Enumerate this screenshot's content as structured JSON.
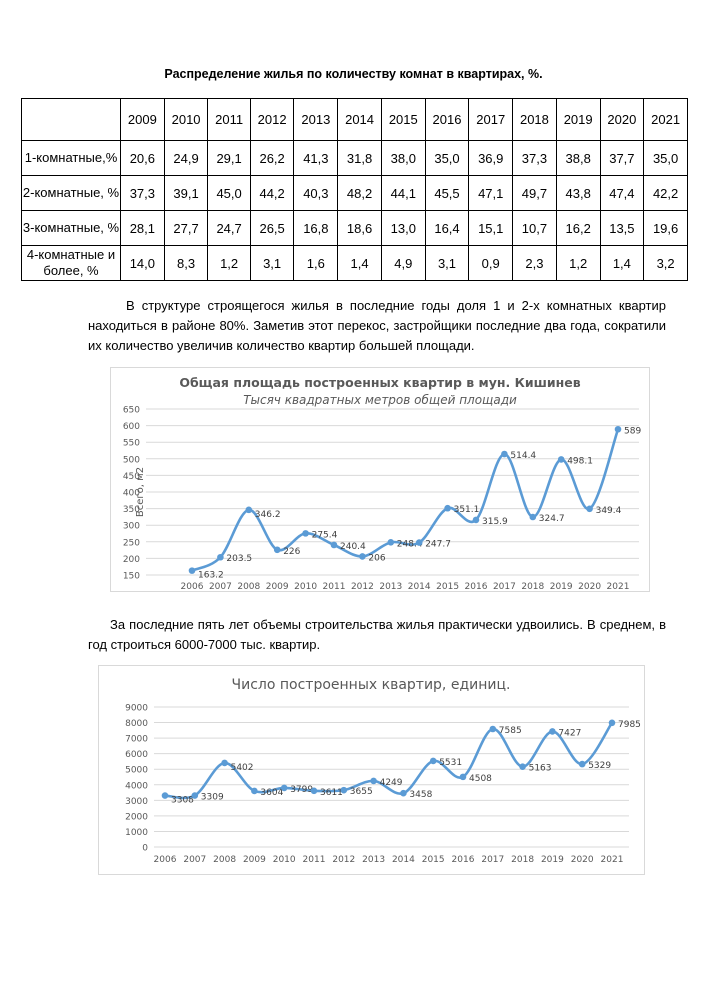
{
  "title": "Распределение жилья по количеству комнат в квартирах, %.",
  "table": {
    "years": [
      "2009",
      "2010",
      "2011",
      "2012",
      "2013",
      "2014",
      "2015",
      "2016",
      "2017",
      "2018",
      "2019",
      "2020",
      "2021"
    ],
    "rows": [
      {
        "label": "1-комнатные,%",
        "values": [
          "20,6",
          "24,9",
          "29,1",
          "26,2",
          "41,3",
          "31,8",
          "38,0",
          "35,0",
          "36,9",
          "37,3",
          "38,8",
          "37,7",
          "35,0"
        ]
      },
      {
        "label": "2-комнатные, %",
        "values": [
          "37,3",
          "39,1",
          "45,0",
          "44,2",
          "40,3",
          "48,2",
          "44,1",
          "45,5",
          "47,1",
          "49,7",
          "43,8",
          "47,4",
          "42,2"
        ]
      },
      {
        "label": "3-комнатные, %",
        "values": [
          "28,1",
          "27,7",
          "24,7",
          "26,5",
          "16,8",
          "18,6",
          "13,0",
          "16,4",
          "15,1",
          "10,7",
          "16,2",
          "13,5",
          "19,6"
        ]
      },
      {
        "label": "4-комнатные и более, %",
        "values": [
          "14,0",
          "8,3",
          "1,2",
          "3,1",
          "1,6",
          "1,4",
          "4,9",
          "3,1",
          "0,9",
          "2,3",
          "1,2",
          "1,4",
          "3,2"
        ]
      }
    ]
  },
  "paragraph1": "В структуре строящегося жилья в последние годы доля 1 и 2-х комнатных квартир находиться в районе 80%. Заметив этот перекос, застройщики последние два года, сократили их количество увеличив количество квартир большей площади.",
  "paragraph2": "За последние пять лет объемы строительства жилья практически удвоились. В среднем, в год строиться 6000-7000 тыс. квартир.",
  "chart_data": [
    {
      "type": "line",
      "title": "Общая площадь построенных квартир в мун. Кишинев",
      "subtitle": "Тысяч квадратных метров общей площади",
      "ylabel": "Всего, м2",
      "xlabel": "",
      "categories": [
        "2006",
        "2007",
        "2008",
        "2009",
        "2010",
        "2011",
        "2012",
        "2013",
        "2014",
        "2015",
        "2016",
        "2017",
        "2018",
        "2019",
        "2020",
        "2021"
      ],
      "values": [
        163.2,
        203.5,
        346.2,
        226,
        275.4,
        240.4,
        206,
        248.4,
        247.7,
        351.1,
        315.9,
        514.4,
        324.7,
        498.1,
        349.4,
        589
      ],
      "labels": [
        "163.2",
        "203.5",
        "346.2",
        "226",
        "275.4",
        "240.4",
        "206",
        "248.4",
        "247.7",
        "351.1",
        "315.9",
        "514.4",
        "324.7",
        "498.1",
        "349.4",
        "589"
      ],
      "ylim": [
        150,
        650
      ],
      "yticks": [
        150,
        200,
        250,
        300,
        350,
        400,
        450,
        500,
        550,
        600,
        650
      ],
      "grid": true,
      "smooth": true,
      "color": "#5b9bd5"
    },
    {
      "type": "line",
      "title": "Число построенных квартир, единиц.",
      "xlabel": "",
      "ylabel": "",
      "categories": [
        "2006",
        "2007",
        "2008",
        "2009",
        "2010",
        "2011",
        "2012",
        "2013",
        "2014",
        "2015",
        "2016",
        "2017",
        "2018",
        "2019",
        "2020",
        "2021"
      ],
      "values": [
        3308,
        3309,
        5402,
        3604,
        3799,
        3611,
        3655,
        4249,
        3458,
        5531,
        4508,
        7585,
        5163,
        7427,
        5329,
        7985
      ],
      "labels": [
        "3308",
        "3309",
        "5402",
        "3604",
        "3799",
        "3611",
        "3655",
        "4249",
        "3458",
        "5531",
        "4508",
        "7585",
        "5163",
        "7427",
        "5329",
        "7985"
      ],
      "ylim": [
        0,
        9000
      ],
      "yticks": [
        0,
        1000,
        2000,
        3000,
        4000,
        5000,
        6000,
        7000,
        8000,
        9000
      ],
      "grid": true,
      "smooth": true,
      "color": "#5b9bd5"
    }
  ]
}
